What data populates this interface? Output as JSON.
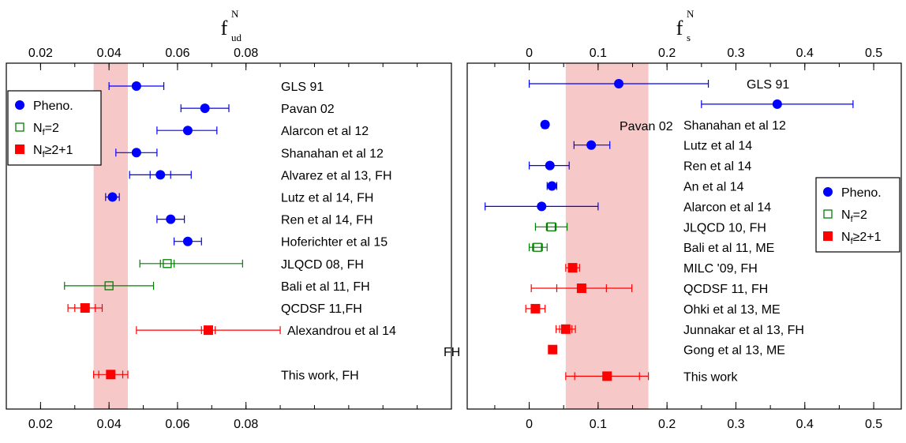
{
  "colors": {
    "pheno": "#0000ff",
    "nf2": "#008000",
    "nf21": "#ff0000",
    "band": "#f7c8c8"
  },
  "chart_data": [
    {
      "type": "scatter",
      "title": "f",
      "title_super": "N",
      "title_sub": "ud",
      "xlim": [
        0.01,
        0.14
      ],
      "xticks": [
        0.02,
        0.04,
        0.06,
        0.08
      ],
      "tick_labels": [
        "0.02",
        "0.04",
        "0.06",
        "0.08"
      ],
      "band": [
        0.0355,
        0.0455
      ],
      "legend_position": "top-left",
      "legend": [
        {
          "label": "Pheno.",
          "marker": "circle",
          "group": "pheno"
        },
        {
          "label": "N",
          "sub": "f",
          "suffix": "=2",
          "marker": "open-square",
          "group": "nf2"
        },
        {
          "label": "N",
          "sub": "f",
          "suffix": "≥2+1",
          "marker": "square",
          "group": "nf21"
        }
      ],
      "points": [
        {
          "label": "GLS 91",
          "x": 0.048,
          "err_lo": 0.04,
          "err_hi": 0.056,
          "group": "pheno"
        },
        {
          "label": "Pavan 02",
          "x": 0.068,
          "err_lo": 0.061,
          "err_hi": 0.075,
          "group": "pheno"
        },
        {
          "label": "Alarcon et al 12",
          "x": 0.063,
          "err_lo": 0.054,
          "err_hi": 0.0715,
          "group": "pheno"
        },
        {
          "label": "Shanahan et al 12",
          "x": 0.048,
          "err_lo": 0.042,
          "err_hi": 0.054,
          "group": "pheno"
        },
        {
          "label": "Alvarez et al 13, FH",
          "x": 0.055,
          "err_lo": 0.046,
          "err_hi": 0.064,
          "inner_lo": 0.052,
          "inner_hi": 0.058,
          "group": "pheno"
        },
        {
          "label": "Lutz et al 14, FH",
          "x": 0.041,
          "err_lo": 0.039,
          "err_hi": 0.043,
          "group": "pheno"
        },
        {
          "label": "Ren et al 14, FH",
          "x": 0.058,
          "err_lo": 0.054,
          "err_hi": 0.062,
          "group": "pheno"
        },
        {
          "label": "Hoferichter et al 15",
          "x": 0.063,
          "err_lo": 0.059,
          "err_hi": 0.067,
          "group": "pheno"
        },
        {
          "label": "JLQCD 08, FH",
          "x": 0.057,
          "err_lo": 0.049,
          "err_hi": 0.079,
          "inner_lo": 0.055,
          "inner_hi": 0.059,
          "group": "nf2"
        },
        {
          "label": "Bali et al 11, FH",
          "x": 0.04,
          "err_lo": 0.027,
          "err_hi": 0.053,
          "group": "nf2"
        },
        {
          "label": "QCDSF 11,FH",
          "x": 0.033,
          "err_lo": 0.028,
          "err_hi": 0.038,
          "inner_lo": 0.03,
          "inner_hi": 0.036,
          "group": "nf21"
        },
        {
          "label": "Alexandrou et al 14",
          "label2": "FH",
          "x": 0.069,
          "err_lo": 0.048,
          "err_hi": 0.09,
          "inner_lo": 0.067,
          "inner_hi": 0.071,
          "group": "nf21"
        },
        {
          "label": "This work, FH",
          "x": 0.0405,
          "err_lo": 0.0355,
          "err_hi": 0.0455,
          "inner_lo": 0.037,
          "inner_hi": 0.044,
          "group": "nf21"
        }
      ]
    },
    {
      "type": "scatter",
      "title": "f",
      "title_super": "N",
      "title_sub": "s",
      "xlim": [
        -0.09,
        0.54
      ],
      "xticks": [
        0,
        0.1,
        0.2,
        0.3,
        0.4,
        0.5
      ],
      "tick_labels": [
        "0",
        "0.1",
        "0.2",
        "0.3",
        "0.4",
        "0.5"
      ],
      "band": [
        0.053,
        0.173
      ],
      "legend_position": "right",
      "legend": [
        {
          "label": "Pheno.",
          "marker": "circle",
          "group": "pheno"
        },
        {
          "label": "N",
          "sub": "f",
          "suffix": "=2",
          "marker": "open-square",
          "group": "nf2"
        },
        {
          "label": "N",
          "sub": "f",
          "suffix": "≥2+1",
          "marker": "square",
          "group": "nf21"
        }
      ],
      "points": [
        {
          "label": "GLS 91",
          "x": 0.13,
          "err_lo": 0.0,
          "err_hi": 0.26,
          "group": "pheno"
        },
        {
          "label": "Pavan 02",
          "x": 0.36,
          "err_lo": 0.25,
          "err_hi": 0.47,
          "group": "pheno"
        },
        {
          "label": "Shanahan et al 12",
          "x": 0.023,
          "err_lo": 0.019,
          "err_hi": 0.027,
          "group": "pheno"
        },
        {
          "label": "Lutz et al 14",
          "x": 0.09,
          "err_lo": 0.065,
          "err_hi": 0.117,
          "group": "pheno"
        },
        {
          "label": "Ren et al 14",
          "x": 0.03,
          "err_lo": 0.0,
          "err_hi": 0.058,
          "group": "pheno"
        },
        {
          "label": "An et al 14",
          "x": 0.033,
          "err_lo": 0.026,
          "err_hi": 0.04,
          "group": "pheno"
        },
        {
          "label": "Alarcon et al 14",
          "x": 0.018,
          "err_lo": -0.064,
          "err_hi": 0.1,
          "group": "pheno"
        },
        {
          "label": "JLQCD 10, FH",
          "x": 0.032,
          "err_lo": 0.009,
          "err_hi": 0.055,
          "inner_lo": 0.025,
          "inner_hi": 0.039,
          "group": "nf2"
        },
        {
          "label": "Bali et al 11, ME",
          "x": 0.012,
          "err_lo": 0.0,
          "err_hi": 0.026,
          "inner_lo": 0.005,
          "inner_hi": 0.019,
          "group": "nf2"
        },
        {
          "label": "MILC '09, FH",
          "x": 0.063,
          "err_lo": 0.053,
          "err_hi": 0.073,
          "inner_lo": 0.058,
          "inner_hi": 0.068,
          "group": "nf21"
        },
        {
          "label": "QCDSF 11, FH",
          "x": 0.076,
          "err_lo": 0.003,
          "err_hi": 0.149,
          "inner_lo": 0.04,
          "inner_hi": 0.112,
          "group": "nf21"
        },
        {
          "label": "Ohki et al 13, ME",
          "x": 0.009,
          "err_lo": -0.005,
          "err_hi": 0.023,
          "inner_lo": 0.003,
          "inner_hi": 0.015,
          "group": "nf21"
        },
        {
          "label": "Junnakar et al 13, FH",
          "x": 0.053,
          "err_lo": 0.039,
          "err_hi": 0.067,
          "inner_lo": 0.044,
          "inner_hi": 0.062,
          "group": "nf21"
        },
        {
          "label": "Gong et al 13, ME",
          "x": 0.034,
          "err_lo": 0.03,
          "err_hi": 0.038,
          "group": "nf21"
        },
        {
          "label": "This work",
          "x": 0.113,
          "err_lo": 0.053,
          "err_hi": 0.173,
          "inner_lo": 0.066,
          "inner_hi": 0.16,
          "group": "nf21"
        }
      ]
    }
  ]
}
